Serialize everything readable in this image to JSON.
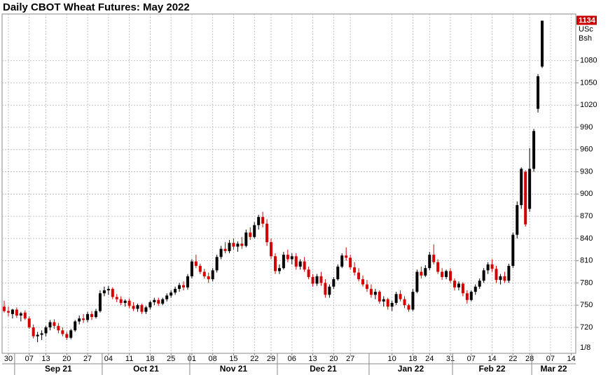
{
  "chart_data": {
    "type": "candlestick",
    "title": "Daily CBOT Wheat Futures: May 2022",
    "unit": [
      "USc",
      "Bsh"
    ],
    "scale_note": "1/8",
    "up_color": "#000000",
    "down_color": "#d40000",
    "last_price_color": "#cc0000",
    "grid": true,
    "ylim": [
      685,
      1143
    ],
    "yticks": [
      720,
      750,
      780,
      810,
      840,
      870,
      900,
      930,
      960,
      990,
      1020,
      1050,
      1080
    ],
    "x": [
      "2021-08-27",
      "2021-08-30",
      "2021-08-31",
      "2021-09-01",
      "2021-09-02",
      "2021-09-03",
      "2021-09-07",
      "2021-09-08",
      "2021-09-09",
      "2021-09-10",
      "2021-09-13",
      "2021-09-14",
      "2021-09-15",
      "2021-09-16",
      "2021-09-17",
      "2021-09-20",
      "2021-09-21",
      "2021-09-22",
      "2021-09-23",
      "2021-09-24",
      "2021-09-27",
      "2021-09-28",
      "2021-09-29",
      "2021-09-30",
      "2021-10-01",
      "2021-10-04",
      "2021-10-05",
      "2021-10-06",
      "2021-10-07",
      "2021-10-08",
      "2021-10-11",
      "2021-10-12",
      "2021-10-13",
      "2021-10-14",
      "2021-10-15",
      "2021-10-18",
      "2021-10-19",
      "2021-10-20",
      "2021-10-21",
      "2021-10-22",
      "2021-10-25",
      "2021-10-26",
      "2021-10-27",
      "2021-10-28",
      "2021-10-29",
      "2021-11-01",
      "2021-11-02",
      "2021-11-03",
      "2021-11-04",
      "2021-11-05",
      "2021-11-08",
      "2021-11-09",
      "2021-11-10",
      "2021-11-11",
      "2021-11-12",
      "2021-11-15",
      "2021-11-16",
      "2021-11-17",
      "2021-11-18",
      "2021-11-19",
      "2021-11-22",
      "2021-11-23",
      "2021-11-24",
      "2021-11-26",
      "2021-11-29",
      "2021-11-30",
      "2021-12-01",
      "2021-12-02",
      "2021-12-03",
      "2021-12-06",
      "2021-12-07",
      "2021-12-08",
      "2021-12-09",
      "2021-12-10",
      "2021-12-13",
      "2021-12-14",
      "2021-12-15",
      "2021-12-16",
      "2021-12-17",
      "2021-12-20",
      "2021-12-21",
      "2021-12-22",
      "2021-12-23",
      "2021-12-27",
      "2021-12-28",
      "2021-12-29",
      "2021-12-30",
      "2021-12-31",
      "2022-01-03",
      "2022-01-04",
      "2022-01-05",
      "2022-01-06",
      "2022-01-07",
      "2022-01-10",
      "2022-01-11",
      "2022-01-12",
      "2022-01-13",
      "2022-01-14",
      "2022-01-18",
      "2022-01-19",
      "2022-01-20",
      "2022-01-21",
      "2022-01-24",
      "2022-01-25",
      "2022-01-26",
      "2022-01-27",
      "2022-01-28",
      "2022-01-31",
      "2022-02-01",
      "2022-02-02",
      "2022-02-03",
      "2022-02-04",
      "2022-02-07",
      "2022-02-08",
      "2022-02-09",
      "2022-02-10",
      "2022-02-11",
      "2022-02-14",
      "2022-02-15",
      "2022-02-16",
      "2022-02-17",
      "2022-02-18",
      "2022-02-22",
      "2022-02-23",
      "2022-02-24",
      "2022-02-25",
      "2022-02-28",
      "2022-03-01",
      "2022-03-02",
      "2022-03-03"
    ],
    "open": [
      748,
      742,
      738,
      744,
      736,
      740,
      732,
      720,
      708,
      710,
      712,
      720,
      727,
      722,
      716,
      711,
      706,
      716,
      728,
      732,
      730,
      738,
      734,
      742,
      766,
      770,
      772,
      761,
      758,
      753,
      756,
      749,
      745,
      750,
      741,
      747,
      754,
      757,
      752,
      758,
      763,
      767,
      772,
      777,
      774,
      789,
      809,
      803,
      795,
      789,
      785,
      797,
      815,
      826,
      823,
      834,
      829,
      833,
      830,
      848,
      842,
      858,
      869,
      860,
      835,
      816,
      796,
      800,
      818,
      812,
      816,
      802,
      809,
      798,
      788,
      779,
      789,
      780,
      764,
      775,
      785,
      802,
      817,
      814,
      801,
      794,
      785,
      778,
      772,
      764,
      768,
      755,
      758,
      748,
      753,
      765,
      758,
      750,
      744,
      768,
      795,
      790,
      800,
      818,
      808,
      795,
      788,
      796,
      783,
      774,
      779,
      766,
      757,
      768,
      775,
      783,
      797,
      805,
      799,
      784,
      789,
      783,
      803,
      845,
      885,
      930,
      880,
      934,
      1015,
      1072
    ],
    "high": [
      756,
      748,
      745,
      747,
      741,
      743,
      735,
      724,
      714,
      716,
      722,
      730,
      731,
      726,
      720,
      714,
      718,
      730,
      736,
      738,
      741,
      742,
      745,
      770,
      775,
      776,
      774,
      765,
      762,
      758,
      759,
      754,
      752,
      752,
      749,
      756,
      760,
      760,
      760,
      766,
      770,
      775,
      780,
      782,
      792,
      812,
      818,
      806,
      799,
      794,
      800,
      818,
      830,
      835,
      838,
      840,
      836,
      842,
      852,
      855,
      862,
      872,
      876,
      866,
      840,
      820,
      805,
      822,
      825,
      820,
      820,
      812,
      815,
      802,
      792,
      792,
      795,
      785,
      778,
      788,
      805,
      820,
      828,
      818,
      808,
      800,
      790,
      784,
      778,
      772,
      770,
      762,
      760,
      756,
      768,
      770,
      762,
      752,
      772,
      798,
      802,
      804,
      822,
      832,
      812,
      800,
      798,
      800,
      786,
      782,
      781,
      770,
      770,
      778,
      786,
      800,
      808,
      812,
      803,
      792,
      795,
      806,
      848,
      890,
      936,
      932,
      962,
      988,
      1062,
      1134
    ],
    "low": [
      740,
      735,
      732,
      733,
      728,
      730,
      718,
      705,
      700,
      703,
      708,
      716,
      718,
      712,
      708,
      703,
      704,
      714,
      724,
      726,
      727,
      730,
      732,
      740,
      762,
      764,
      758,
      754,
      750,
      748,
      746,
      742,
      741,
      738,
      738,
      744,
      750,
      749,
      750,
      755,
      760,
      764,
      768,
      770,
      771,
      786,
      800,
      792,
      786,
      780,
      782,
      794,
      812,
      820,
      820,
      825,
      822,
      826,
      828,
      838,
      840,
      852,
      855,
      830,
      812,
      792,
      792,
      798,
      808,
      805,
      798,
      798,
      795,
      785,
      775,
      776,
      776,
      760,
      760,
      772,
      783,
      800,
      810,
      798,
      790,
      782,
      775,
      768,
      760,
      758,
      752,
      748,
      744,
      742,
      750,
      755,
      746,
      741,
      742,
      766,
      786,
      788,
      797,
      805,
      792,
      784,
      785,
      780,
      770,
      770,
      762,
      752,
      755,
      764,
      772,
      780,
      792,
      795,
      780,
      778,
      780,
      780,
      800,
      840,
      880,
      856,
      876,
      930,
      1010,
      1070
    ],
    "close": [
      742,
      740,
      744,
      736,
      739,
      732,
      720,
      708,
      710,
      712,
      720,
      727,
      722,
      716,
      711,
      706,
      716,
      728,
      732,
      730,
      738,
      734,
      742,
      766,
      770,
      772,
      761,
      758,
      753,
      756,
      749,
      745,
      750,
      741,
      747,
      754,
      757,
      752,
      758,
      763,
      767,
      772,
      777,
      774,
      789,
      809,
      803,
      795,
      789,
      785,
      797,
      815,
      826,
      823,
      834,
      829,
      833,
      830,
      848,
      842,
      858,
      869,
      860,
      835,
      816,
      796,
      800,
      818,
      812,
      816,
      802,
      809,
      798,
      788,
      779,
      789,
      780,
      764,
      775,
      785,
      802,
      817,
      814,
      801,
      794,
      785,
      778,
      772,
      764,
      768,
      755,
      758,
      748,
      753,
      765,
      758,
      750,
      744,
      768,
      795,
      790,
      800,
      818,
      808,
      795,
      788,
      796,
      783,
      774,
      779,
      766,
      757,
      768,
      775,
      783,
      797,
      805,
      799,
      784,
      789,
      783,
      803,
      845,
      885,
      934,
      859,
      934,
      985,
      1059,
      1134
    ],
    "xticks": [
      {
        "value": "2021-08-30",
        "label": "30"
      },
      {
        "value": "2021-09-07",
        "label": "07"
      },
      {
        "value": "2021-09-13",
        "label": "13"
      },
      {
        "value": "2021-09-20",
        "label": "20"
      },
      {
        "value": "2021-09-27",
        "label": "27"
      },
      {
        "value": "2021-10-04",
        "label": "04"
      },
      {
        "value": "2021-10-11",
        "label": "11"
      },
      {
        "value": "2021-10-18",
        "label": "18"
      },
      {
        "value": "2021-10-25",
        "label": "25"
      },
      {
        "value": "2021-11-01",
        "label": "01"
      },
      {
        "value": "2021-11-08",
        "label": "08"
      },
      {
        "value": "2021-11-15",
        "label": "15"
      },
      {
        "value": "2021-11-22",
        "label": "22"
      },
      {
        "value": "2021-11-29",
        "label": "29"
      },
      {
        "value": "2021-12-06",
        "label": "06"
      },
      {
        "value": "2021-12-13",
        "label": "13"
      },
      {
        "value": "2021-12-20",
        "label": "20"
      },
      {
        "value": "2021-12-27",
        "label": "27"
      },
      {
        "value": "2022-01-10",
        "label": "10"
      },
      {
        "value": "2022-01-18",
        "label": "18"
      },
      {
        "value": "2022-01-24",
        "label": "24"
      },
      {
        "value": "2022-01-31",
        "label": "31"
      },
      {
        "value": "2022-02-07",
        "label": "07"
      },
      {
        "value": "2022-02-14",
        "label": "14"
      },
      {
        "value": "2022-02-22",
        "label": "22"
      },
      {
        "value": "2022-02-28",
        "label": "28"
      },
      {
        "value": "2022-03-07",
        "label": "07"
      },
      {
        "value": "2022-03-14",
        "label": "14"
      }
    ],
    "months": [
      {
        "value": "2021-09",
        "label": "Sep 21"
      },
      {
        "value": "2021-10",
        "label": "Oct 21"
      },
      {
        "value": "2021-11",
        "label": "Nov 21"
      },
      {
        "value": "2021-12",
        "label": "Dec 21"
      },
      {
        "value": "2022-01",
        "label": "Jan 22"
      },
      {
        "value": "2022-02",
        "label": "Feb 22"
      },
      {
        "value": "2022-03",
        "label": "Mar 22"
      }
    ]
  }
}
